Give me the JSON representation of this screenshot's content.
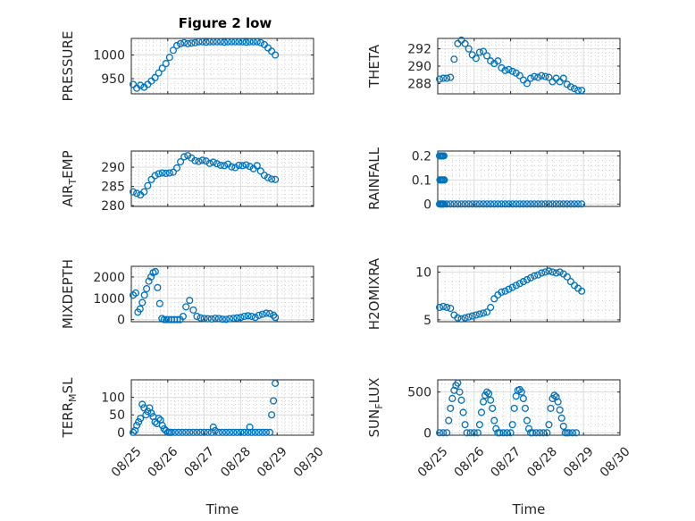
{
  "figure": {
    "title": "Figure 2 low",
    "marker_color": "#0072BD"
  },
  "chart_data": [
    {
      "type": "scatter",
      "ylabel": "PRESSURE",
      "title": "Figure 2 low",
      "yticks": [
        950,
        1000
      ],
      "ylim": [
        918,
        1035
      ],
      "xlim": [
        0,
        5
      ],
      "xticks": [
        0,
        1,
        2,
        3,
        4,
        5
      ],
      "xticklabels": [
        "",
        "",
        "",
        "",
        "",
        ""
      ],
      "xlabel": "",
      "grid": true,
      "x": [
        0.05,
        0.15,
        0.25,
        0.35,
        0.45,
        0.55,
        0.65,
        0.75,
        0.85,
        0.95,
        1.05,
        1.15,
        1.25,
        1.35,
        1.45,
        1.55,
        1.65,
        1.75,
        1.85,
        1.95,
        2.05,
        2.15,
        2.25,
        2.35,
        2.45,
        2.55,
        2.65,
        2.75,
        2.85,
        2.95,
        3.05,
        3.15,
        3.25,
        3.35,
        3.45,
        3.55,
        3.65,
        3.75,
        3.85,
        3.95
      ],
      "y": [
        938,
        930,
        936,
        932,
        938,
        945,
        952,
        962,
        972,
        982,
        995,
        1010,
        1020,
        1024,
        1026,
        1024,
        1025,
        1026,
        1028,
        1028,
        1027,
        1028,
        1028,
        1028,
        1028,
        1027,
        1028,
        1028,
        1028,
        1028,
        1028,
        1027,
        1028,
        1028,
        1028,
        1026,
        1022,
        1015,
        1008,
        1000
      ]
    },
    {
      "type": "scatter",
      "ylabel": "THETA",
      "title": "",
      "yticks": [
        288,
        290,
        292
      ],
      "ylim": [
        286.8,
        293.2
      ],
      "xlim": [
        0,
        5
      ],
      "xticks": [
        0,
        1,
        2,
        3,
        4,
        5
      ],
      "xticklabels": [
        "",
        "",
        "",
        "",
        "",
        ""
      ],
      "xlabel": "",
      "grid": true,
      "x": [
        0.05,
        0.15,
        0.25,
        0.35,
        0.45,
        0.55,
        0.65,
        0.75,
        0.85,
        0.95,
        1.05,
        1.15,
        1.25,
        1.35,
        1.45,
        1.55,
        1.65,
        1.75,
        1.85,
        1.95,
        2.05,
        2.15,
        2.25,
        2.35,
        2.45,
        2.55,
        2.65,
        2.75,
        2.85,
        2.95,
        3.05,
        3.15,
        3.25,
        3.35,
        3.45,
        3.55,
        3.65,
        3.75,
        3.85,
        3.95
      ],
      "y": [
        288.5,
        288.6,
        288.6,
        288.7,
        290.8,
        292.6,
        293.0,
        292.6,
        292.0,
        291.3,
        290.9,
        291.6,
        291.7,
        291.2,
        290.6,
        290.3,
        290.6,
        289.8,
        289.5,
        289.6,
        289.4,
        289.2,
        288.9,
        288.4,
        288.0,
        288.6,
        288.8,
        288.7,
        288.9,
        288.8,
        288.7,
        288.2,
        288.6,
        288.2,
        288.6,
        287.9,
        287.6,
        287.4,
        287.2,
        287.2
      ]
    },
    {
      "type": "scatter",
      "ylabel": "AIR_TEMP",
      "title": "",
      "yticks": [
        280,
        285,
        290
      ],
      "ylim": [
        279.8,
        294.2
      ],
      "xlim": [
        0,
        5
      ],
      "xticks": [
        0,
        1,
        2,
        3,
        4,
        5
      ],
      "xticklabels": [
        "",
        "",
        "",
        "",
        "",
        ""
      ],
      "xlabel": "",
      "grid": true,
      "x": [
        0.05,
        0.15,
        0.25,
        0.35,
        0.45,
        0.55,
        0.65,
        0.75,
        0.85,
        0.95,
        1.05,
        1.15,
        1.25,
        1.35,
        1.45,
        1.55,
        1.65,
        1.75,
        1.85,
        1.95,
        2.05,
        2.15,
        2.25,
        2.35,
        2.45,
        2.55,
        2.65,
        2.75,
        2.85,
        2.95,
        3.05,
        3.15,
        3.25,
        3.35,
        3.45,
        3.55,
        3.65,
        3.75,
        3.85,
        3.95
      ],
      "y": [
        283.6,
        283.2,
        282.8,
        283.6,
        285.2,
        286.8,
        287.8,
        288.3,
        288.5,
        288.4,
        288.5,
        288.7,
        289.8,
        291.4,
        292.7,
        293.0,
        292.4,
        291.7,
        291.5,
        291.8,
        291.6,
        291.0,
        291.3,
        290.9,
        290.5,
        290.4,
        290.8,
        290.1,
        289.9,
        290.5,
        290.4,
        290.6,
        290.2,
        289.6,
        290.4,
        289.0,
        287.9,
        287.3,
        286.9,
        286.8
      ]
    },
    {
      "type": "scatter",
      "ylabel": "RAINFALL",
      "title": "",
      "yticks": [
        0,
        0.1,
        0.2
      ],
      "ylim": [
        -0.01,
        0.22
      ],
      "xlim": [
        0,
        5
      ],
      "xticks": [
        0,
        1,
        2,
        3,
        4,
        5
      ],
      "xticklabels": [
        "",
        "",
        "",
        "",
        "",
        ""
      ],
      "xlabel": "",
      "grid": true,
      "x": [
        0.05,
        0.08,
        0.11,
        0.14,
        0.17,
        0.06,
        0.09,
        0.12,
        0.15,
        0.18,
        0.05,
        0.08,
        0.11,
        0.14,
        0.17,
        0.25,
        0.35,
        0.45,
        0.55,
        0.65,
        0.75,
        0.85,
        0.95,
        1.05,
        1.15,
        1.25,
        1.35,
        1.45,
        1.55,
        1.65,
        1.75,
        1.85,
        1.95,
        2.05,
        2.15,
        2.25,
        2.35,
        2.45,
        2.55,
        2.65,
        2.75,
        2.85,
        2.95,
        3.05,
        3.15,
        3.25,
        3.35,
        3.45,
        3.55,
        3.65,
        3.75,
        3.85,
        3.95
      ],
      "y": [
        0.2,
        0.2,
        0.2,
        0.2,
        0.2,
        0.1,
        0.1,
        0.1,
        0.1,
        0.1,
        0,
        0,
        0,
        0,
        0,
        0,
        0,
        0,
        0,
        0,
        0,
        0,
        0,
        0,
        0,
        0,
        0,
        0,
        0,
        0,
        0,
        0,
        0,
        0,
        0,
        0,
        0,
        0,
        0,
        0,
        0,
        0,
        0,
        0,
        0,
        0,
        0,
        0,
        0,
        0,
        0,
        0,
        0
      ]
    },
    {
      "type": "scatter",
      "ylabel": "MIXDEPTH",
      "title": "",
      "yticks": [
        0,
        1000,
        2000
      ],
      "ylim": [
        -100,
        2500
      ],
      "xlim": [
        0,
        5
      ],
      "xticks": [
        0,
        1,
        2,
        3,
        4,
        5
      ],
      "xticklabels": [
        "",
        "",
        "",
        "",
        "",
        ""
      ],
      "xlabel": "",
      "grid": true,
      "x": [
        0.05,
        0.12,
        0.18,
        0.24,
        0.3,
        0.36,
        0.42,
        0.48,
        0.54,
        0.6,
        0.66,
        0.72,
        0.78,
        0.84,
        0.9,
        0.96,
        1.02,
        1.1,
        1.18,
        1.26,
        1.34,
        1.42,
        1.5,
        1.6,
        1.7,
        1.8,
        1.9,
        2.0,
        2.1,
        2.2,
        2.3,
        2.4,
        2.5,
        2.6,
        2.7,
        2.8,
        2.9,
        3.0,
        3.1,
        3.2,
        3.3,
        3.4,
        3.5,
        3.6,
        3.7,
        3.8,
        3.9,
        3.95
      ],
      "y": [
        1150,
        1250,
        350,
        500,
        800,
        1150,
        1450,
        1800,
        2000,
        2200,
        2250,
        1500,
        750,
        50,
        0,
        0,
        0,
        0,
        0,
        0,
        0,
        150,
        600,
        900,
        450,
        150,
        80,
        50,
        40,
        30,
        60,
        50,
        20,
        10,
        40,
        60,
        80,
        100,
        150,
        180,
        150,
        100,
        200,
        250,
        300,
        280,
        200,
        100
      ]
    },
    {
      "type": "scatter",
      "ylabel": "H2OMIXRA",
      "title": "",
      "yticks": [
        5,
        10
      ],
      "ylim": [
        4.8,
        10.6
      ],
      "xlim": [
        0,
        5
      ],
      "xticks": [
        0,
        1,
        2,
        3,
        4,
        5
      ],
      "xticklabels": [
        "",
        "",
        "",
        "",
        "",
        ""
      ],
      "xlabel": "",
      "grid": true,
      "x": [
        0.05,
        0.15,
        0.25,
        0.35,
        0.45,
        0.55,
        0.65,
        0.75,
        0.85,
        0.95,
        1.05,
        1.15,
        1.25,
        1.35,
        1.45,
        1.55,
        1.65,
        1.75,
        1.85,
        1.95,
        2.05,
        2.15,
        2.25,
        2.35,
        2.45,
        2.55,
        2.65,
        2.75,
        2.85,
        2.95,
        3.05,
        3.15,
        3.25,
        3.35,
        3.45,
        3.55,
        3.65,
        3.75,
        3.85,
        3.95
      ],
      "y": [
        6.3,
        6.4,
        6.3,
        6.2,
        5.5,
        5.2,
        5.1,
        5.2,
        5.3,
        5.4,
        5.5,
        5.6,
        5.7,
        5.8,
        6.3,
        7.2,
        7.6,
        7.9,
        8.0,
        8.2,
        8.4,
        8.6,
        8.8,
        9.0,
        9.2,
        9.4,
        9.6,
        9.7,
        9.9,
        10.0,
        10.1,
        10.0,
        9.9,
        10.0,
        9.8,
        9.5,
        9.0,
        8.6,
        8.3,
        8.0
      ]
    },
    {
      "type": "scatter",
      "ylabel": "TERR_MSL",
      "title": "",
      "yticks": [
        0,
        50,
        100
      ],
      "ylim": [
        -8,
        150
      ],
      "xlim": [
        0,
        5
      ],
      "xticks": [
        0,
        1,
        2,
        3,
        4,
        5
      ],
      "xticklabels": [
        "08/25",
        "08/26",
        "08/27",
        "08/28",
        "08/29",
        "08/30"
      ],
      "xlabel": "Time",
      "grid": true,
      "x": [
        0.05,
        0.1,
        0.15,
        0.2,
        0.25,
        0.3,
        0.35,
        0.4,
        0.45,
        0.5,
        0.55,
        0.6,
        0.65,
        0.7,
        0.75,
        0.8,
        0.85,
        0.9,
        0.95,
        1.0,
        1.05,
        1.1,
        1.2,
        1.3,
        1.4,
        1.5,
        1.6,
        1.7,
        1.8,
        1.9,
        2.0,
        2.1,
        2.2,
        2.25,
        2.3,
        2.4,
        2.5,
        2.6,
        2.7,
        2.8,
        2.9,
        3.0,
        3.1,
        3.2,
        3.25,
        3.3,
        3.4,
        3.5,
        3.6,
        3.7,
        3.8,
        3.85,
        3.9,
        3.95
      ],
      "y": [
        0,
        5,
        20,
        30,
        40,
        80,
        70,
        50,
        60,
        70,
        55,
        45,
        30,
        25,
        40,
        35,
        20,
        10,
        5,
        0,
        0,
        0,
        0,
        0,
        0,
        0,
        0,
        0,
        0,
        0,
        0,
        0,
        0,
        15,
        5,
        0,
        0,
        0,
        0,
        0,
        0,
        0,
        0,
        0,
        15,
        0,
        0,
        0,
        0,
        0,
        0,
        50,
        90,
        140
      ]
    },
    {
      "type": "scatter",
      "ylabel": "SUN_FLUX",
      "title": "",
      "yticks": [
        0,
        500
      ],
      "ylim": [
        -30,
        650
      ],
      "xlim": [
        0,
        5
      ],
      "xticks": [
        0,
        1,
        2,
        3,
        4,
        5
      ],
      "xticklabels": [
        "08/25",
        "08/26",
        "08/27",
        "08/28",
        "08/29",
        "08/30"
      ],
      "xlabel": "Time",
      "grid": true,
      "x": [
        0.05,
        0.15,
        0.25,
        0.3,
        0.35,
        0.4,
        0.45,
        0.5,
        0.55,
        0.6,
        0.65,
        0.7,
        0.75,
        0.8,
        0.9,
        1.0,
        1.1,
        1.15,
        1.2,
        1.25,
        1.3,
        1.35,
        1.4,
        1.45,
        1.5,
        1.55,
        1.6,
        1.65,
        1.7,
        1.8,
        1.9,
        2.0,
        2.05,
        2.1,
        2.15,
        2.2,
        2.25,
        2.3,
        2.35,
        2.4,
        2.45,
        2.5,
        2.55,
        2.6,
        2.7,
        2.8,
        2.9,
        3.0,
        3.05,
        3.1,
        3.15,
        3.2,
        3.25,
        3.3,
        3.35,
        3.4,
        3.45,
        3.5,
        3.55,
        3.6,
        3.7,
        3.8
      ],
      "y": [
        0,
        0,
        0,
        150,
        300,
        420,
        520,
        580,
        610,
        500,
        400,
        250,
        100,
        0,
        0,
        0,
        0,
        100,
        250,
        380,
        460,
        500,
        480,
        400,
        300,
        150,
        50,
        0,
        0,
        0,
        0,
        0,
        100,
        300,
        450,
        520,
        530,
        500,
        420,
        300,
        150,
        50,
        0,
        0,
        0,
        0,
        0,
        0,
        100,
        300,
        420,
        460,
        440,
        380,
        280,
        180,
        80,
        0,
        0,
        0,
        0,
        0
      ]
    }
  ]
}
